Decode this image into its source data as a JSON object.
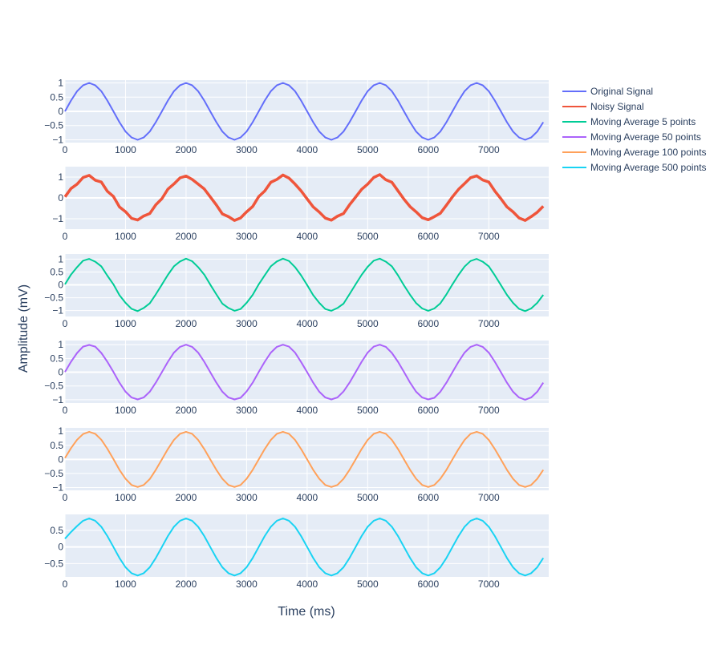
{
  "chart_data": {
    "type": "line",
    "xlabel": "Time (ms)",
    "ylabel": "Amplitude (mV)",
    "xlim": [
      0,
      7990
    ],
    "xticks": [
      0,
      1000,
      2000,
      3000,
      4000,
      5000,
      6000,
      7000
    ],
    "x_step": 100,
    "x_start": 0,
    "grid": true,
    "legend_placement": "top-right",
    "subplots": [
      {
        "series": "Original Signal",
        "color": "#636efa",
        "ylim": [
          -1.1,
          1.1
        ],
        "yticks": [
          -1,
          -0.5,
          0,
          0.5,
          1
        ],
        "values": [
          0,
          0.38,
          0.71,
          0.92,
          1,
          0.92,
          0.71,
          0.38,
          0,
          -0.38,
          -0.71,
          -0.92,
          -1,
          -0.92,
          -0.71,
          -0.38,
          0,
          0.38,
          0.71,
          0.92,
          1,
          0.92,
          0.71,
          0.38,
          0,
          -0.38,
          -0.71,
          -0.92,
          -1,
          -0.92,
          -0.71,
          -0.38,
          0,
          0.38,
          0.71,
          0.92,
          1,
          0.92,
          0.71,
          0.38,
          0,
          -0.38,
          -0.71,
          -0.92,
          -1,
          -0.92,
          -0.71,
          -0.38,
          0,
          0.38,
          0.71,
          0.92,
          1,
          0.92,
          0.71,
          0.38,
          0,
          -0.38,
          -0.71,
          -0.92,
          -1,
          -0.92,
          -0.71,
          -0.38,
          0,
          0.38,
          0.71,
          0.92,
          1,
          0.92,
          0.71,
          0.38,
          0,
          -0.38,
          -0.71,
          -0.92,
          -1,
          -0.92,
          -0.71,
          -0.38
        ]
      },
      {
        "series": "Noisy Signal",
        "color": "#EF553B",
        "ylim": [
          -1.5,
          1.5
        ],
        "yticks": [
          -1,
          0,
          1
        ],
        "values": [
          0.05,
          0.45,
          0.66,
          0.98,
          1.08,
          0.85,
          0.76,
          0.32,
          0.07,
          -0.43,
          -0.66,
          -0.98,
          -1.06,
          -0.87,
          -0.75,
          -0.33,
          -0.04,
          0.42,
          0.67,
          0.96,
          1.05,
          0.89,
          0.66,
          0.43,
          0.05,
          -0.34,
          -0.77,
          -0.9,
          -1.08,
          -0.96,
          -0.67,
          -0.41,
          0.06,
          0.33,
          0.75,
          0.89,
          1.1,
          0.95,
          0.66,
          0.34,
          -0.05,
          -0.43,
          -0.68,
          -0.97,
          -1.07,
          -0.88,
          -0.75,
          -0.33,
          0.04,
          0.41,
          0.66,
          0.98,
          1.12,
          0.87,
          0.75,
          0.34,
          -0.06,
          -0.42,
          -0.67,
          -0.95,
          -1.05,
          -0.9,
          -0.74,
          -0.35,
          0.05,
          0.41,
          0.69,
          0.97,
          1.06,
          0.86,
          0.76,
          0.33,
          -0.04,
          -0.43,
          -0.67,
          -0.96,
          -1.08,
          -0.9,
          -0.69,
          -0.4
        ]
      },
      {
        "series": "Moving Average 5 points",
        "color": "#00cc96",
        "ylim": [
          -1.23,
          1.2
        ],
        "yticks": [
          -1,
          -0.5,
          0,
          0.5,
          1
        ],
        "values": [
          0.02,
          0.4,
          0.69,
          0.94,
          1.01,
          0.9,
          0.72,
          0.36,
          0.02,
          -0.4,
          -0.7,
          -0.93,
          -1.02,
          -0.9,
          -0.72,
          -0.37,
          0.01,
          0.39,
          0.72,
          0.91,
          1.02,
          0.92,
          0.69,
          0.4,
          0.01,
          -0.37,
          -0.73,
          -0.9,
          -1.01,
          -0.94,
          -0.7,
          -0.39,
          0.02,
          0.37,
          0.72,
          0.91,
          1.02,
          0.93,
          0.69,
          0.37,
          -0.01,
          -0.4,
          -0.7,
          -0.94,
          -1.01,
          -0.9,
          -0.73,
          -0.36,
          0.02,
          0.39,
          0.7,
          0.94,
          1.02,
          0.9,
          0.72,
          0.37,
          -0.02,
          -0.39,
          -0.71,
          -0.92,
          -1.01,
          -0.92,
          -0.72,
          -0.37,
          0.02,
          0.39,
          0.71,
          0.93,
          1.01,
          0.9,
          0.72,
          0.37,
          -0.01,
          -0.39,
          -0.7,
          -0.93,
          -1.02,
          -0.92,
          -0.7,
          -0.39
        ]
      },
      {
        "series": "Moving Average 50 points",
        "color": "#ab63fa",
        "ylim": [
          -1.12,
          1.15
        ],
        "yticks": [
          -1,
          -0.5,
          0,
          0.5,
          1
        ],
        "values": [
          0.01,
          0.38,
          0.7,
          0.93,
          0.99,
          0.93,
          0.7,
          0.38,
          0.01,
          -0.38,
          -0.71,
          -0.92,
          -0.99,
          -0.92,
          -0.71,
          -0.38,
          0,
          0.38,
          0.71,
          0.92,
          1,
          0.92,
          0.71,
          0.38,
          0,
          -0.38,
          -0.71,
          -0.92,
          -0.99,
          -0.93,
          -0.7,
          -0.38,
          0.01,
          0.38,
          0.71,
          0.92,
          1,
          0.93,
          0.71,
          0.37,
          0,
          -0.38,
          -0.71,
          -0.92,
          -0.99,
          -0.92,
          -0.7,
          -0.38,
          0,
          0.38,
          0.71,
          0.93,
          1,
          0.92,
          0.7,
          0.38,
          0.01,
          -0.38,
          -0.71,
          -0.92,
          -0.99,
          -0.93,
          -0.71,
          -0.38,
          0,
          0.38,
          0.71,
          0.92,
          1,
          0.92,
          0.71,
          0.38,
          0,
          -0.38,
          -0.71,
          -0.92,
          -1,
          -0.92,
          -0.71,
          -0.38
        ]
      },
      {
        "series": "Moving Average 100 points",
        "color": "#FFA15A",
        "ylim": [
          -1.1,
          1.12
        ],
        "yticks": [
          -1,
          -0.5,
          0,
          0.5,
          1
        ],
        "values": [
          0.05,
          0.4,
          0.7,
          0.9,
          0.98,
          0.91,
          0.7,
          0.38,
          0.01,
          -0.37,
          -0.69,
          -0.91,
          -0.98,
          -0.91,
          -0.7,
          -0.37,
          0,
          0.37,
          0.69,
          0.91,
          0.98,
          0.91,
          0.69,
          0.37,
          0,
          -0.37,
          -0.69,
          -0.91,
          -0.98,
          -0.91,
          -0.69,
          -0.37,
          0,
          0.37,
          0.69,
          0.91,
          0.98,
          0.91,
          0.69,
          0.37,
          0,
          -0.37,
          -0.69,
          -0.91,
          -0.98,
          -0.91,
          -0.69,
          -0.37,
          0,
          0.37,
          0.69,
          0.91,
          0.98,
          0.91,
          0.69,
          0.37,
          0,
          -0.37,
          -0.69,
          -0.91,
          -0.98,
          -0.91,
          -0.69,
          -0.37,
          0,
          0.37,
          0.69,
          0.91,
          0.98,
          0.91,
          0.69,
          0.37,
          0,
          -0.37,
          -0.69,
          -0.91,
          -0.98,
          -0.91,
          -0.69,
          -0.37
        ]
      },
      {
        "series": "Moving Average 500 points",
        "color": "#19d3f3",
        "ylim": [
          -0.9,
          0.98
        ],
        "yticks": [
          -0.5,
          0,
          0.5
        ],
        "values": [
          0.25,
          0.45,
          0.63,
          0.79,
          0.86,
          0.79,
          0.61,
          0.33,
          0,
          -0.33,
          -0.61,
          -0.79,
          -0.86,
          -0.79,
          -0.61,
          -0.33,
          0,
          0.33,
          0.61,
          0.79,
          0.86,
          0.79,
          0.61,
          0.33,
          0,
          -0.33,
          -0.61,
          -0.79,
          -0.86,
          -0.79,
          -0.61,
          -0.33,
          0,
          0.33,
          0.61,
          0.79,
          0.86,
          0.79,
          0.61,
          0.33,
          0,
          -0.33,
          -0.61,
          -0.79,
          -0.86,
          -0.79,
          -0.61,
          -0.33,
          0,
          0.33,
          0.61,
          0.79,
          0.86,
          0.79,
          0.61,
          0.33,
          0,
          -0.33,
          -0.61,
          -0.79,
          -0.86,
          -0.79,
          -0.61,
          -0.33,
          0,
          0.33,
          0.61,
          0.79,
          0.86,
          0.79,
          0.61,
          0.33,
          0,
          -0.33,
          -0.61,
          -0.79,
          -0.86,
          -0.79,
          -0.61,
          -0.33
        ]
      }
    ]
  }
}
